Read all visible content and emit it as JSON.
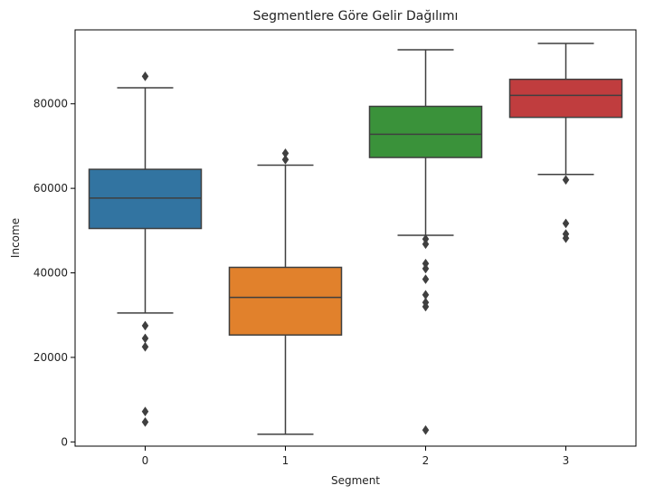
{
  "chart_data": {
    "type": "box",
    "title": "Segmentlere Göre Gelir Dağılımı",
    "xlabel": "Segment",
    "ylabel": "Income",
    "ylim": [
      -1000,
      97500
    ],
    "yticks": [
      0,
      20000,
      40000,
      60000,
      80000
    ],
    "grid": false,
    "categories": [
      "0",
      "1",
      "2",
      "3"
    ],
    "boxes": [
      {
        "category": "0",
        "color": "#3274a1",
        "whisker_low": 30500,
        "q1": 50500,
        "median": 57700,
        "q3": 64500,
        "whisker_high": 83800,
        "outliers": [
          86500,
          27500,
          24500,
          22500,
          7200,
          4700
        ]
      },
      {
        "category": "1",
        "color": "#e1812c",
        "whisker_low": 1800,
        "q1": 25300,
        "median": 34200,
        "q3": 41300,
        "whisker_high": 65500,
        "outliers": [
          68300,
          66800
        ]
      },
      {
        "category": "2",
        "color": "#3a923a",
        "whisker_low": 48900,
        "q1": 67300,
        "median": 72800,
        "q3": 79400,
        "whisker_high": 92800,
        "outliers": [
          48000,
          46800,
          42200,
          41000,
          38500,
          34800,
          33000,
          32000,
          2800
        ]
      },
      {
        "category": "3",
        "color": "#c03d3e",
        "whisker_low": 63300,
        "q1": 76800,
        "median": 82000,
        "q3": 85800,
        "whisker_high": 94300,
        "outliers": [
          62000,
          51700,
          49200,
          48200
        ]
      }
    ]
  }
}
